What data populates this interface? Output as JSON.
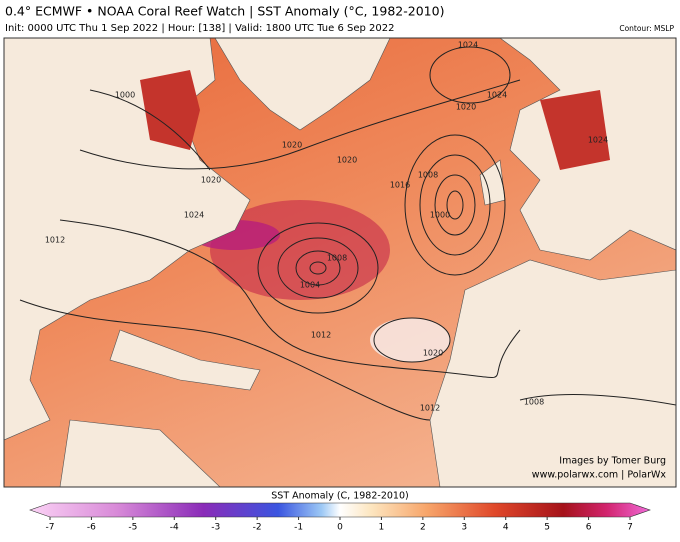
{
  "header": {
    "title": "0.4° ECMWF • NOAA Coral Reef Watch | SST Anomaly (°C, 1982-2010)",
    "subtitle": "Init: 0000 UTC Thu 1 Sep 2022 | Hour: [138] | Valid: 1800 UTC Tue 6 Sep 2022",
    "contour": "Contour: MSLP"
  },
  "map": {
    "contour_labels": [
      "1000",
      "1020",
      "1024",
      "1012",
      "1020",
      "1020",
      "1016",
      "1008",
      "1000",
      "1024",
      "1024",
      "1020",
      "1024",
      "1008",
      "1004",
      "1012",
      "1020",
      "1012",
      "1008"
    ]
  },
  "credits": [
    "Images by Tomer Burg",
    "www.polarwx.com | PolarWx"
  ],
  "colorbar": {
    "title": "SST Anomaly (C, 1982-2010)",
    "ticks": [
      -7,
      -6,
      -5,
      -4,
      -3,
      -2,
      -1,
      0,
      1,
      2,
      3,
      4,
      5,
      6,
      7
    ]
  }
}
